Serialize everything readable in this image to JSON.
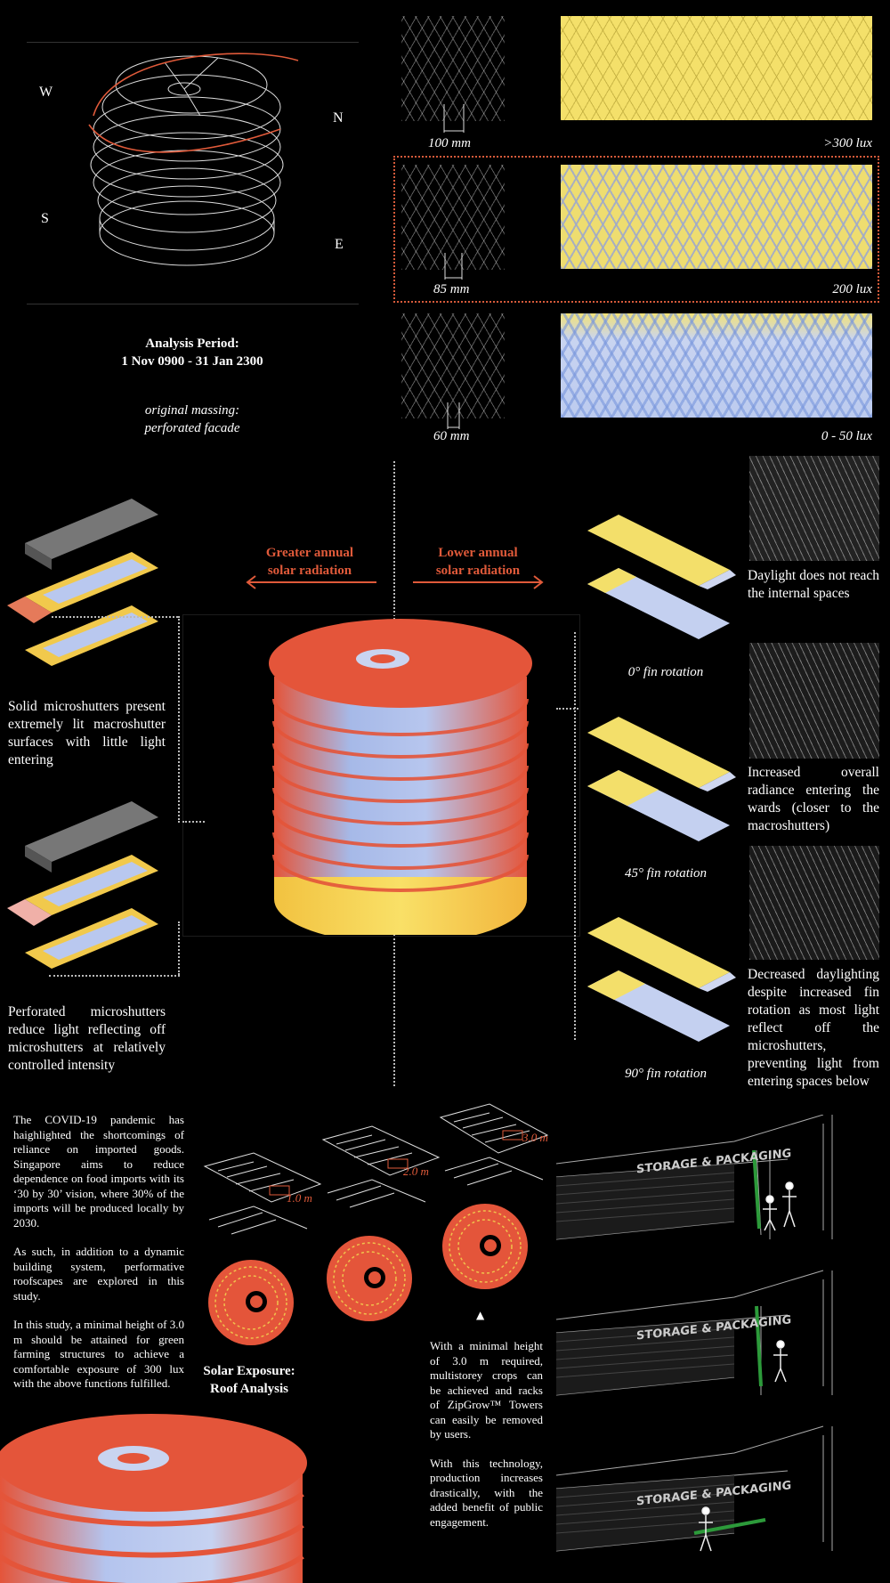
{
  "compass": {
    "w": "W",
    "n": "N",
    "s": "S",
    "e": "E"
  },
  "analysis": {
    "title_line1": "Analysis Period:",
    "title_line2": "1 Nov 0900 - 31 Jan 2300",
    "caption_line1": "original massing:",
    "caption_line2": "perforated facade"
  },
  "perforation_studies": [
    {
      "spacing": "100 mm",
      "lux": ">300 lux",
      "highlighted": false
    },
    {
      "spacing": "85 mm",
      "lux": "200 lux",
      "highlighted": true
    },
    {
      "spacing": "60 mm",
      "lux": "0 - 50 lux",
      "highlighted": false
    }
  ],
  "radiation": {
    "greater_line1": "Greater annual",
    "greater_line2": "solar radiation",
    "lower_line1": "Lower annual",
    "lower_line2": "solar radiation",
    "accent_color": "#e05a3a"
  },
  "left_notes": {
    "solid": "Solid microshutters present extremely lit macroshutter surfaces with little light entering",
    "perforated": "Perforated microshutters reduce light reflecting off microshutters at relatively controlled intensity"
  },
  "fin_rotations": [
    {
      "label": "0° fin rotation",
      "note": "Daylight does not reach the internal spaces"
    },
    {
      "label": "45° fin rotation",
      "note": "Increased overall radiance entering the wards (closer to the macroshutters)"
    },
    {
      "label": "90° fin rotation",
      "note": "Decreased daylighting despite increased fin rotation as most light reflect off the microshutters, preventing light from entering spaces below"
    }
  ],
  "intro_text": {
    "p1": "The COVID-19 pandemic has haighlighted the shortcomings of reliance on imported goods. Singapore aims to reduce dependence on food imports with its ‘30 by 30’ vision, where 30% of the imports will be produced locally by 2030.",
    "p2": "As such, in addition to a dynamic building system, performative roofscapes are explored in this study.",
    "p3": "In this study, a minimal height of 3.0 m should be attained for green farming structures to achieve a comfortable exposure of 300 lux with the above functions fulfilled."
  },
  "roof_heights": [
    "1.0 m",
    "2.0 m",
    "3.0 m"
  ],
  "roof_title_line1": "Solar Exposure:",
  "roof_title_line2": "Roof Analysis",
  "arrow_glyph": "▲",
  "zipgrow_text": {
    "p1": "With a minimal height of 3.0 m required, multistorey crops can be achieved and racks of ZipGrow™ Towers can easily be removed by users.",
    "p2": "With this technology, production increases drastically, with the added benefit of public engagement."
  },
  "warehouse_sign": "STORAGE & PACKAGING"
}
